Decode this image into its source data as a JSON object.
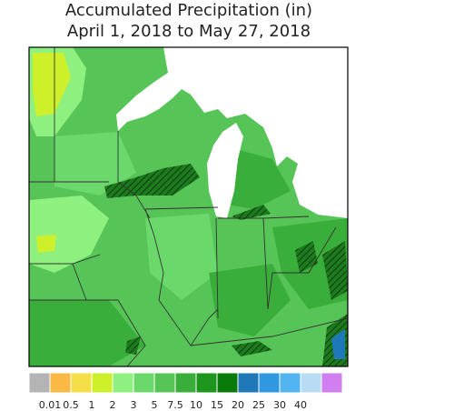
{
  "header": {
    "title": "Accumulated Precipitation (in)",
    "subtitle": "April 1, 2018 to May 27, 2018"
  },
  "legend": {
    "colors": [
      "#b4b4b4",
      "#f9b944",
      "#f5df48",
      "#cef02a",
      "#8ef07e",
      "#6ad86a",
      "#57c457",
      "#3aae3a",
      "#1e961e",
      "#0a7a0a",
      "#1f78b8",
      "#2f98e0",
      "#52b4f0",
      "#b8dcf4",
      "#d07ef0"
    ],
    "labels": [
      "0.01",
      "0.5",
      "1",
      "2",
      "3",
      "5",
      "7.5",
      "10",
      "15",
      "20",
      "25",
      "30",
      "40"
    ]
  }
}
